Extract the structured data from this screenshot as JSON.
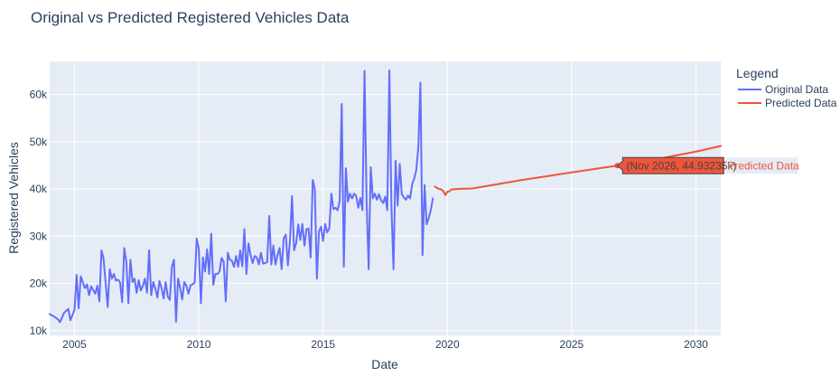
{
  "chart_data": {
    "type": "line",
    "title": "Original vs Predicted Registered Vehicles Data",
    "xlabel": "Date",
    "ylabel": "Registered Vehicles",
    "x_axis_type": "date",
    "xlim": [
      "2004-01-01",
      "2031-01-01"
    ],
    "ylim": [
      9000,
      67000
    ],
    "x_ticks": [
      {
        "value": "2005-01-01",
        "label": "2005"
      },
      {
        "value": "2010-01-01",
        "label": "2010"
      },
      {
        "value": "2015-01-01",
        "label": "2015"
      },
      {
        "value": "2020-01-01",
        "label": "2020"
      },
      {
        "value": "2025-01-01",
        "label": "2025"
      },
      {
        "value": "2030-01-01",
        "label": "2030"
      }
    ],
    "y_ticks": [
      {
        "value": 10000,
        "label": "10k"
      },
      {
        "value": 20000,
        "label": "20k"
      },
      {
        "value": 30000,
        "label": "30k"
      },
      {
        "value": 40000,
        "label": "40k"
      },
      {
        "value": 50000,
        "label": "50k"
      },
      {
        "value": 60000,
        "label": "60k"
      }
    ],
    "grid": true,
    "legend": {
      "title": "Legend",
      "placement": "top-right"
    },
    "series": [
      {
        "name": "Original Data",
        "color": "#636efa",
        "points": [
          [
            "2004-01-01",
            13500
          ],
          [
            "2004-03-01",
            13000
          ],
          [
            "2004-05-01",
            12400
          ],
          [
            "2004-06-01",
            11800
          ],
          [
            "2004-08-01",
            13800
          ],
          [
            "2004-10-01",
            14600
          ],
          [
            "2004-11-01",
            12200
          ],
          [
            "2005-01-01",
            14400
          ],
          [
            "2005-02-01",
            21800
          ],
          [
            "2005-03-01",
            14700
          ],
          [
            "2005-04-01",
            21500
          ],
          [
            "2005-06-01",
            19000
          ],
          [
            "2005-07-01",
            19800
          ],
          [
            "2005-08-01",
            17500
          ],
          [
            "2005-09-01",
            19400
          ],
          [
            "2005-11-01",
            17800
          ],
          [
            "2005-12-01",
            19500
          ],
          [
            "2006-01-01",
            16200
          ],
          [
            "2006-02-01",
            27000
          ],
          [
            "2006-03-01",
            25300
          ],
          [
            "2006-05-01",
            15000
          ],
          [
            "2006-06-01",
            23000
          ],
          [
            "2006-07-01",
            21000
          ],
          [
            "2006-08-01",
            22000
          ],
          [
            "2006-09-01",
            20600
          ],
          [
            "2006-10-01",
            20800
          ],
          [
            "2006-11-01",
            20200
          ],
          [
            "2006-12-01",
            16000
          ],
          [
            "2007-01-01",
            27500
          ],
          [
            "2007-02-01",
            24600
          ],
          [
            "2007-03-01",
            15800
          ],
          [
            "2007-04-01",
            25000
          ],
          [
            "2007-05-01",
            20300
          ],
          [
            "2007-06-01",
            21000
          ],
          [
            "2007-07-01",
            18000
          ],
          [
            "2007-08-01",
            20700
          ],
          [
            "2007-09-01",
            18500
          ],
          [
            "2007-10-01",
            19500
          ],
          [
            "2007-11-01",
            21000
          ],
          [
            "2007-12-01",
            18000
          ],
          [
            "2008-01-01",
            27000
          ],
          [
            "2008-02-01",
            17500
          ],
          [
            "2008-03-01",
            20300
          ],
          [
            "2008-04-01",
            18900
          ],
          [
            "2008-05-01",
            17000
          ],
          [
            "2008-06-01",
            20500
          ],
          [
            "2008-07-01",
            19000
          ],
          [
            "2008-08-01",
            16800
          ],
          [
            "2008-09-01",
            20300
          ],
          [
            "2008-10-01",
            17200
          ],
          [
            "2008-11-01",
            16500
          ],
          [
            "2008-12-01",
            23500
          ],
          [
            "2009-01-01",
            25000
          ],
          [
            "2009-02-01",
            11900
          ],
          [
            "2009-03-01",
            21000
          ],
          [
            "2009-04-01",
            19000
          ],
          [
            "2009-05-01",
            16600
          ],
          [
            "2009-06-01",
            20300
          ],
          [
            "2009-07-01",
            19500
          ],
          [
            "2009-08-01",
            17800
          ],
          [
            "2009-09-01",
            19600
          ],
          [
            "2009-10-01",
            19800
          ],
          [
            "2009-11-01",
            20200
          ],
          [
            "2009-12-01",
            29500
          ],
          [
            "2010-01-01",
            27300
          ],
          [
            "2010-02-01",
            15800
          ],
          [
            "2010-03-01",
            25500
          ],
          [
            "2010-04-01",
            22500
          ],
          [
            "2010-05-01",
            27200
          ],
          [
            "2010-06-01",
            22000
          ],
          [
            "2010-07-01",
            30500
          ],
          [
            "2010-08-01",
            19700
          ],
          [
            "2010-09-01",
            22000
          ],
          [
            "2010-10-01",
            22000
          ],
          [
            "2010-11-01",
            22500
          ],
          [
            "2010-12-01",
            25400
          ],
          [
            "2011-01-01",
            24600
          ],
          [
            "2011-02-01",
            16200
          ],
          [
            "2011-03-01",
            26500
          ],
          [
            "2011-04-01",
            25000
          ],
          [
            "2011-05-01",
            24800
          ],
          [
            "2011-06-01",
            23500
          ],
          [
            "2011-07-01",
            25800
          ],
          [
            "2011-08-01",
            23500
          ],
          [
            "2011-09-01",
            27000
          ],
          [
            "2011-10-01",
            23600
          ],
          [
            "2011-11-01",
            31500
          ],
          [
            "2011-12-01",
            22000
          ],
          [
            "2012-01-01",
            28500
          ],
          [
            "2012-02-01",
            26000
          ],
          [
            "2012-03-01",
            24300
          ],
          [
            "2012-04-01",
            25800
          ],
          [
            "2012-05-01",
            25500
          ],
          [
            "2012-06-01",
            24000
          ],
          [
            "2012-07-01",
            26500
          ],
          [
            "2012-08-01",
            24200
          ],
          [
            "2012-09-01",
            24300
          ],
          [
            "2012-10-01",
            24500
          ],
          [
            "2012-11-01",
            34300
          ],
          [
            "2012-12-01",
            24000
          ],
          [
            "2013-01-01",
            28000
          ],
          [
            "2013-02-01",
            24000
          ],
          [
            "2013-03-01",
            26000
          ],
          [
            "2013-04-01",
            27500
          ],
          [
            "2013-05-01",
            23000
          ],
          [
            "2013-06-01",
            29600
          ],
          [
            "2013-07-01",
            30300
          ],
          [
            "2013-08-01",
            23800
          ],
          [
            "2013-09-01",
            29000
          ],
          [
            "2013-10-01",
            38500
          ],
          [
            "2013-11-01",
            27000
          ],
          [
            "2013-12-01",
            28500
          ],
          [
            "2014-01-01",
            32500
          ],
          [
            "2014-02-01",
            29200
          ],
          [
            "2014-03-01",
            32600
          ],
          [
            "2014-04-01",
            28000
          ],
          [
            "2014-05-01",
            31500
          ],
          [
            "2014-06-01",
            31600
          ],
          [
            "2014-07-01",
            25500
          ],
          [
            "2014-08-01",
            41900
          ],
          [
            "2014-09-01",
            40000
          ],
          [
            "2014-10-01",
            21000
          ],
          [
            "2014-11-01",
            31000
          ],
          [
            "2014-12-01",
            32000
          ],
          [
            "2015-01-01",
            29000
          ],
          [
            "2015-02-01",
            32600
          ],
          [
            "2015-03-01",
            30800
          ],
          [
            "2015-04-01",
            31600
          ],
          [
            "2015-05-01",
            39000
          ],
          [
            "2015-06-01",
            35700
          ],
          [
            "2015-07-01",
            36000
          ],
          [
            "2015-08-01",
            35500
          ],
          [
            "2015-09-01",
            37500
          ],
          [
            "2015-10-01",
            58000
          ],
          [
            "2015-11-01",
            23500
          ],
          [
            "2015-12-01",
            44400
          ],
          [
            "2016-01-01",
            37300
          ],
          [
            "2016-02-01",
            39000
          ],
          [
            "2016-03-01",
            38000
          ],
          [
            "2016-04-01",
            39000
          ],
          [
            "2016-05-01",
            38500
          ],
          [
            "2016-06-01",
            36000
          ],
          [
            "2016-07-01",
            38100
          ],
          [
            "2016-08-01",
            35500
          ],
          [
            "2016-09-01",
            65000
          ],
          [
            "2016-10-01",
            37500
          ],
          [
            "2016-11-01",
            23000
          ],
          [
            "2016-12-01",
            44600
          ],
          [
            "2017-01-01",
            38000
          ],
          [
            "2017-02-01",
            39000
          ],
          [
            "2017-03-01",
            37700
          ],
          [
            "2017-04-01",
            38900
          ],
          [
            "2017-05-01",
            37600
          ],
          [
            "2017-06-01",
            37000
          ],
          [
            "2017-07-01",
            38400
          ],
          [
            "2017-08-01",
            35500
          ],
          [
            "2017-09-01",
            65100
          ],
          [
            "2017-10-01",
            36000
          ],
          [
            "2017-11-01",
            23000
          ],
          [
            "2017-12-01",
            46000
          ],
          [
            "2018-01-01",
            36500
          ],
          [
            "2018-02-01",
            45300
          ],
          [
            "2018-03-01",
            38900
          ],
          [
            "2018-04-01",
            38200
          ],
          [
            "2018-05-01",
            37700
          ],
          [
            "2018-06-01",
            38600
          ],
          [
            "2018-07-01",
            38000
          ],
          [
            "2018-08-01",
            41000
          ],
          [
            "2018-09-01",
            42200
          ],
          [
            "2018-10-01",
            44000
          ],
          [
            "2018-11-01",
            49000
          ],
          [
            "2018-12-01",
            62500
          ],
          [
            "2019-01-01",
            26000
          ],
          [
            "2019-02-01",
            40800
          ],
          [
            "2019-03-01",
            32500
          ],
          [
            "2019-04-01",
            33800
          ],
          [
            "2019-05-01",
            35500
          ],
          [
            "2019-06-01",
            38000
          ]
        ]
      },
      {
        "name": "Predicted Data",
        "color": "#ef553b",
        "points": [
          [
            "2019-07-01",
            40500
          ],
          [
            "2019-08-01",
            40200
          ],
          [
            "2019-09-01",
            40000
          ],
          [
            "2019-10-01",
            39900
          ],
          [
            "2019-11-01",
            39600
          ],
          [
            "2019-12-01",
            38700
          ],
          [
            "2020-01-01",
            39400
          ],
          [
            "2020-02-01",
            39500
          ],
          [
            "2020-03-01",
            39900
          ],
          [
            "2020-06-01",
            40000
          ],
          [
            "2021-01-01",
            40100
          ],
          [
            "2022-01-01",
            41000
          ],
          [
            "2023-01-01",
            41900
          ],
          [
            "2024-01-01",
            42700
          ],
          [
            "2025-01-01",
            43500
          ],
          [
            "2026-01-01",
            44300
          ],
          [
            "2026-11-01",
            44932
          ],
          [
            "2028-01-01",
            45800
          ],
          [
            "2029-01-01",
            46900
          ],
          [
            "2030-01-01",
            47900
          ],
          [
            "2031-01-01",
            49100
          ]
        ]
      }
    ],
    "hover": {
      "x": "2026-11-01",
      "y": 44932,
      "text": "(Nov 2026, 44.93235k)",
      "series_name": "Predicted Data"
    }
  }
}
